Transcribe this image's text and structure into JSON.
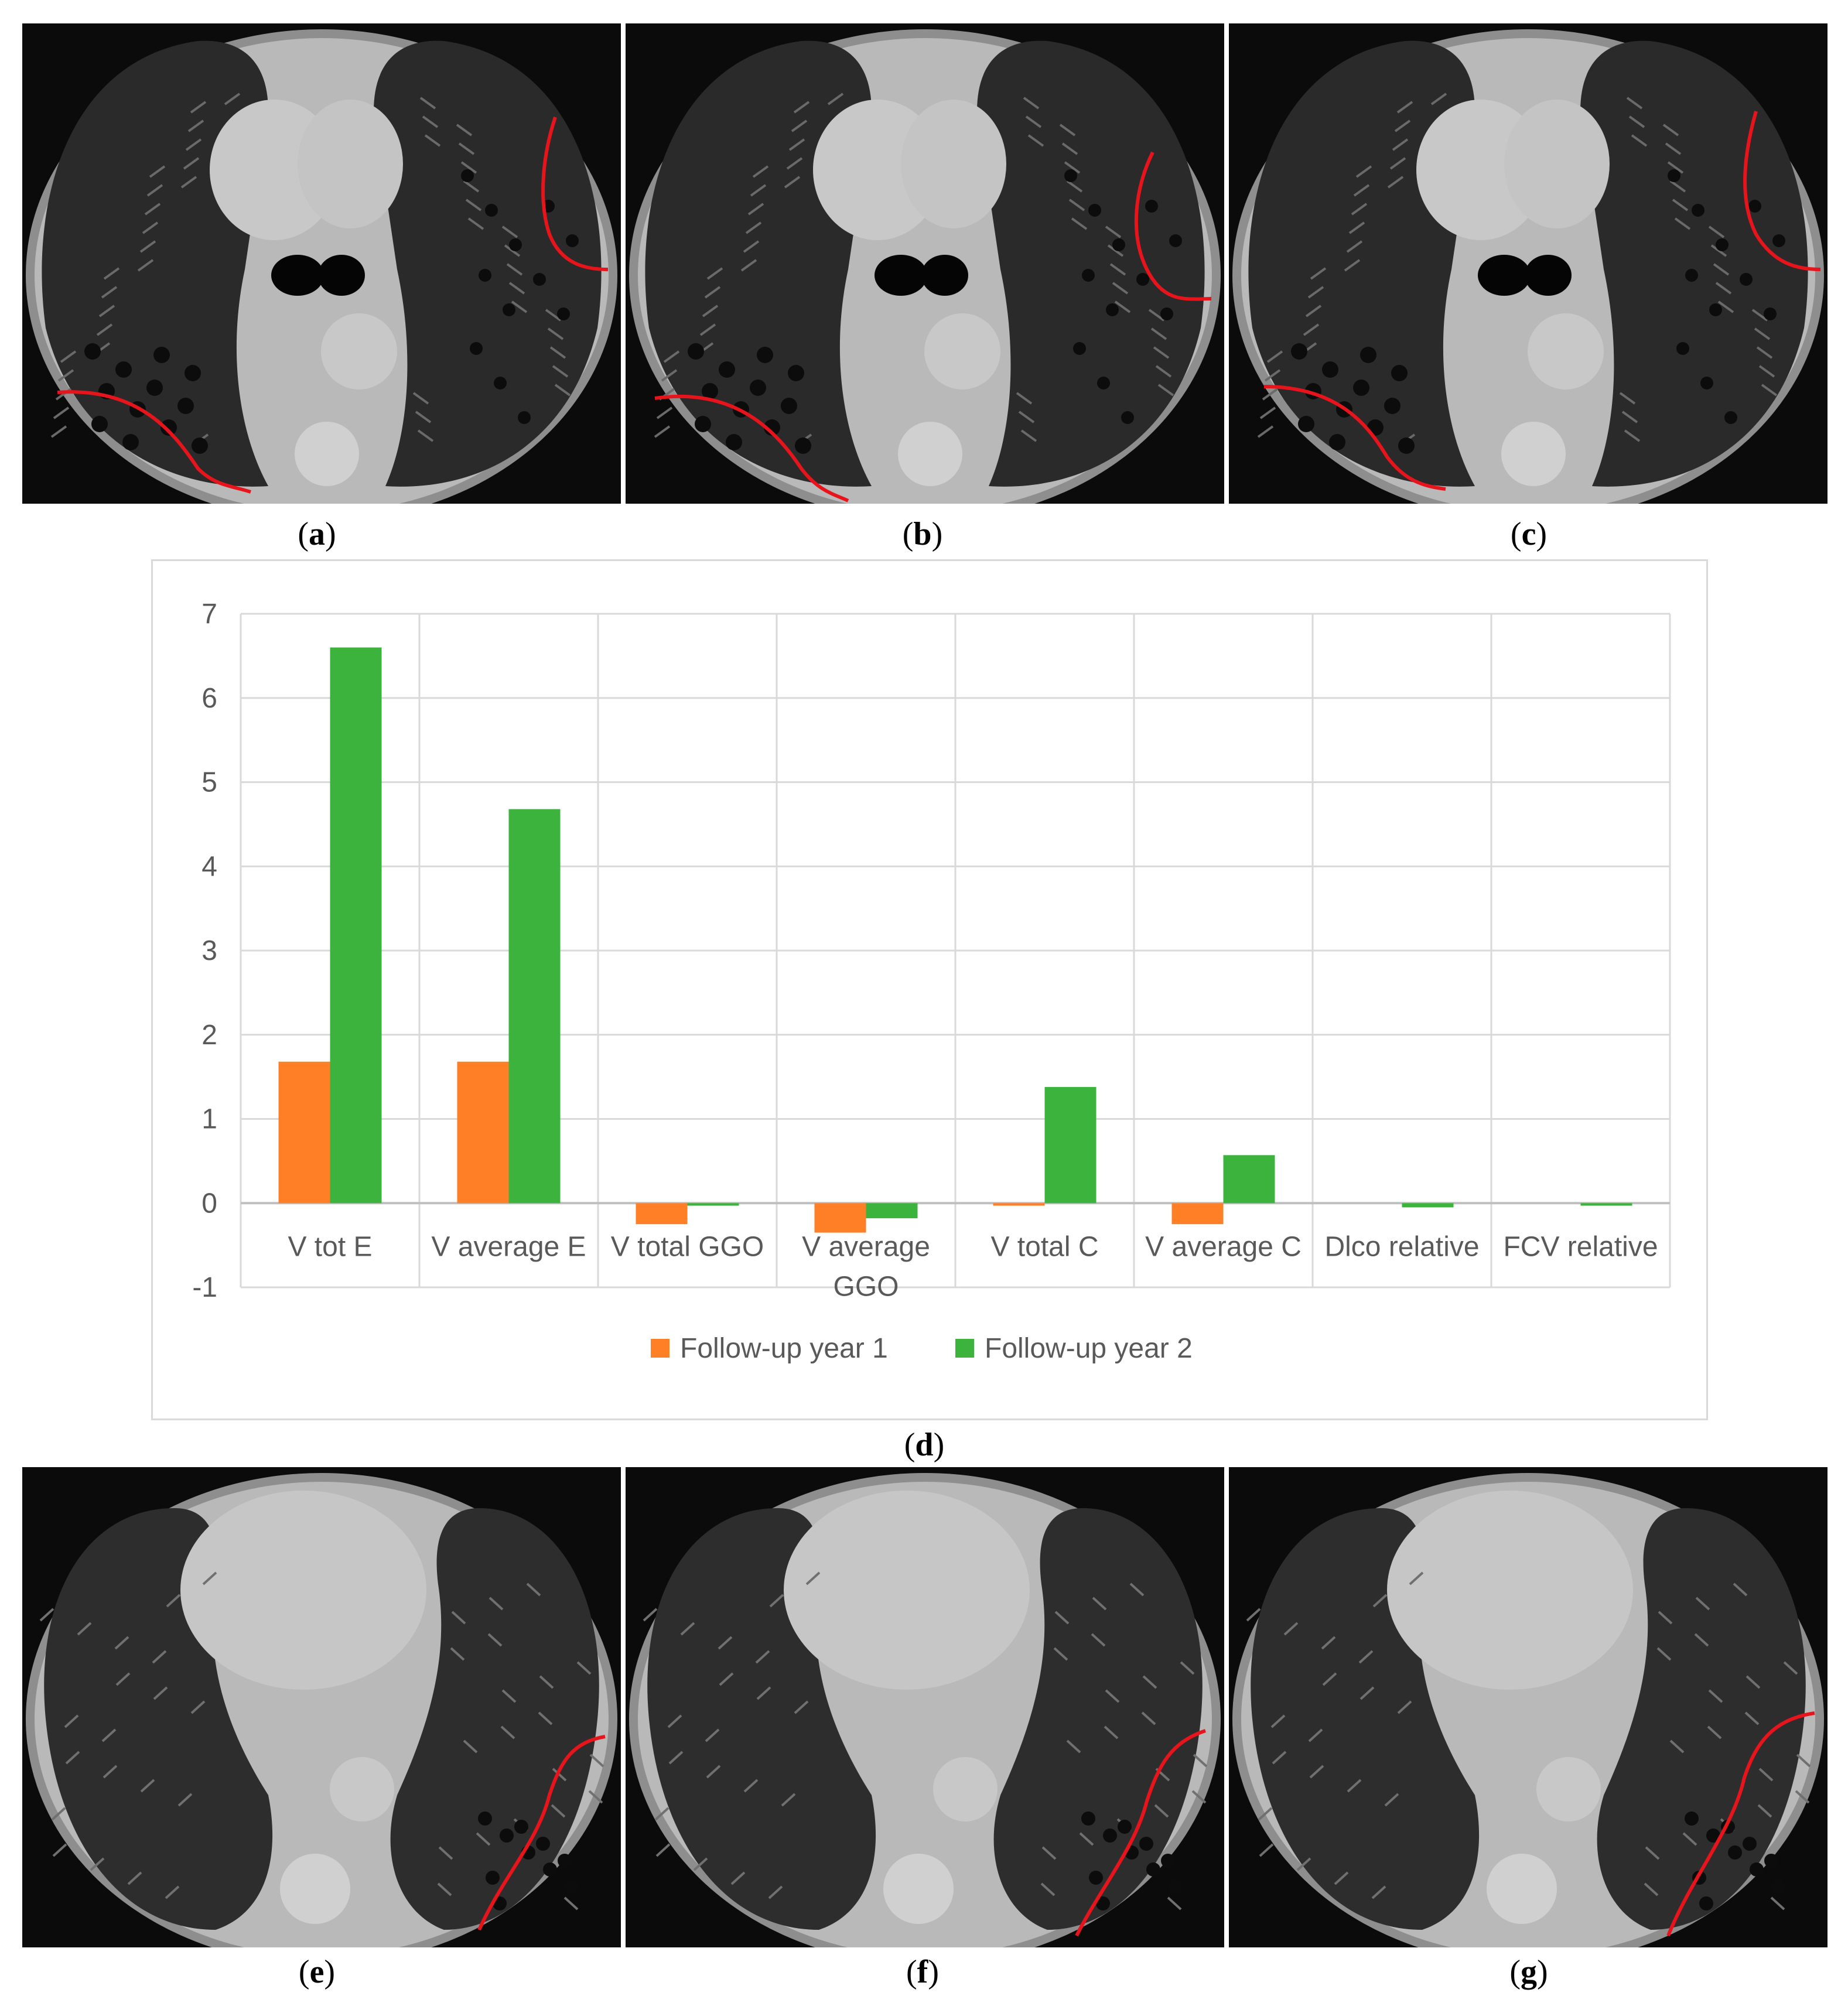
{
  "panels": {
    "a": "a",
    "b": "b",
    "c": "c",
    "d": "d",
    "e": "e",
    "f": "f",
    "g": "g"
  },
  "colors": {
    "series_1": "#ff7f27",
    "series_2": "#3cb33c",
    "annotation": "#e8141c",
    "gridline": "#d9d9d9",
    "axis_text": "#595959"
  },
  "chart_data": {
    "type": "bar",
    "categories": [
      "V tot E",
      "V average E",
      "V total GGO",
      "V average GGO",
      "V total C",
      "V  average C",
      "Dlco relative",
      "FCV relative"
    ],
    "series": [
      {
        "name": "Follow-up year 1",
        "values": [
          1.68,
          1.68,
          -0.25,
          -0.35,
          -0.03,
          -0.25,
          0,
          0
        ]
      },
      {
        "name": "Follow-up year 2",
        "values": [
          6.6,
          4.68,
          -0.03,
          -0.18,
          1.38,
          0.57,
          -0.05,
          -0.03
        ]
      }
    ],
    "ylim": [
      -1,
      7
    ],
    "yticks": [
      7,
      6,
      5,
      4,
      3,
      2,
      1,
      0,
      -1
    ],
    "grid": true,
    "legend": "bottom",
    "title": "",
    "xlabel": "",
    "ylabel": ""
  }
}
